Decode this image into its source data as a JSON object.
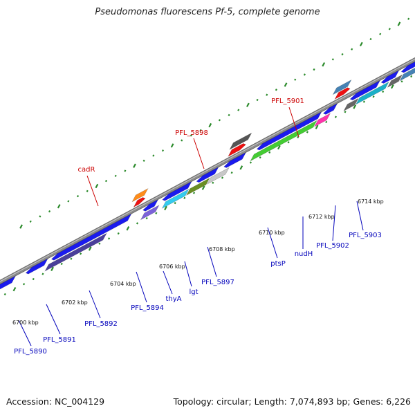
{
  "title": "Pseudomonas fluorescens Pf-5, complete genome",
  "footer": {
    "accession": "Accession: NC_004129",
    "summary": "Topology: circular; Length: 7,074,893 bp; Genes: 6,226"
  },
  "colors": {
    "backbone": "#8c8c8c",
    "tick": "#2b8a2b",
    "forward_label": "#cc0000",
    "reverse_label": "#0000bb"
  },
  "position_labels": [
    "6700 kbp",
    "6702 kbp",
    "6704 kbp",
    "6706 kbp",
    "6708 kbp",
    "6710 kbp",
    "6712 kbp",
    "6714 kbp"
  ],
  "gene_labels_forward": [
    "cadR",
    "PFL_5898",
    "PFL_5901"
  ],
  "gene_labels_reverse": [
    "PFL_5890",
    "PFL_5891",
    "PFL_5892",
    "PFL_5894",
    "thyA",
    "lgt",
    "PFL_5897",
    "ptsP",
    "nudH",
    "PFL_5902",
    "PFL_5903"
  ]
}
